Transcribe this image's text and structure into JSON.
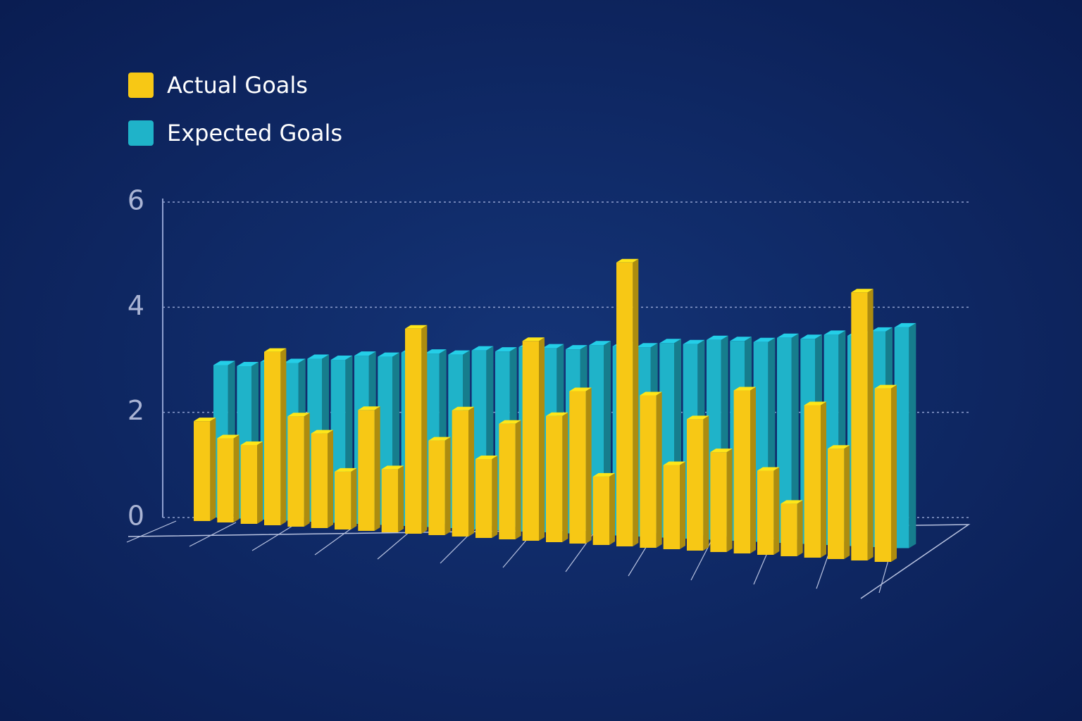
{
  "chart_data": {
    "type": "bar3d",
    "categories": [
      null,
      null,
      null,
      null,
      null,
      null,
      null,
      null,
      null,
      null,
      null,
      null,
      null,
      null,
      null,
      null,
      null,
      null,
      null,
      null,
      null,
      null,
      null,
      null,
      null,
      null,
      null,
      null,
      null,
      null
    ],
    "series": [
      {
        "name": "Actual Goals",
        "color": "#f7c815",
        "values": [
          1.9,
          1.6,
          1.5,
          3.3,
          2.1,
          1.8,
          1.1,
          2.3,
          1.2,
          3.9,
          1.8,
          2.4,
          1.5,
          2.2,
          3.8,
          2.4,
          2.9,
          1.3,
          5.4,
          2.9,
          1.6,
          2.5,
          1.9,
          3.1,
          1.6,
          1.0,
          2.9,
          2.1,
          5.1,
          3.3
        ]
      },
      {
        "name": "Expected Goals",
        "color": "#1fb3c9",
        "values": [
          2.9,
          2.9,
          3.0,
          3.0,
          3.1,
          3.1,
          3.2,
          3.2,
          3.3,
          3.3,
          3.3,
          3.4,
          3.4,
          3.5,
          3.5,
          3.5,
          3.6,
          3.6,
          3.6,
          3.7,
          3.7,
          3.8,
          3.8,
          3.8,
          3.9,
          3.9,
          4.0,
          4.0,
          4.1,
          4.2
        ]
      }
    ],
    "ylim": [
      0,
      6
    ],
    "yticks": [
      0,
      2,
      4,
      6
    ],
    "grid": true
  }
}
